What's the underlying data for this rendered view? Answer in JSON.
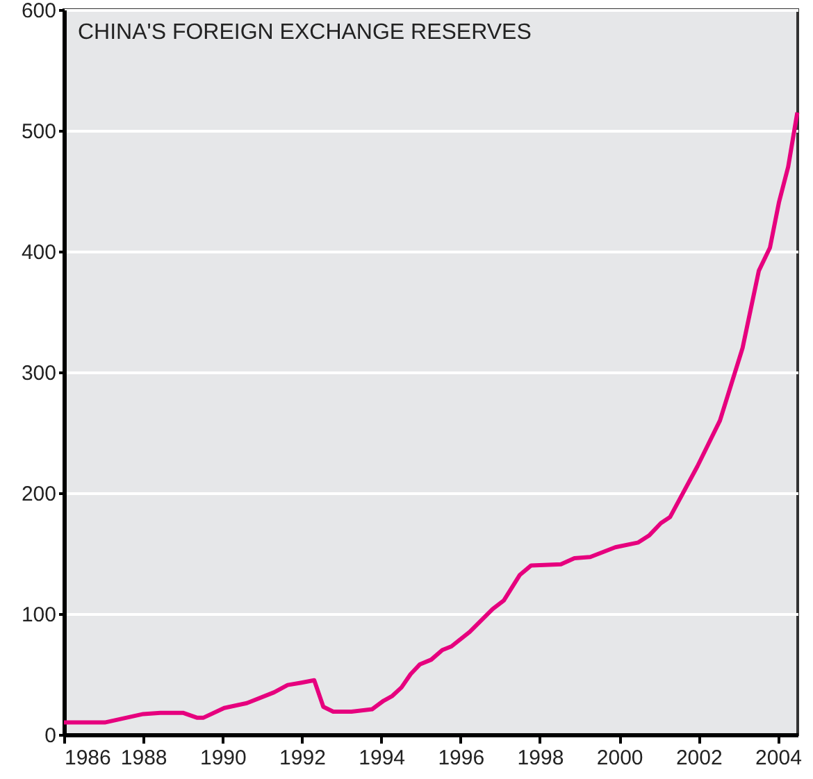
{
  "chart_data": {
    "type": "line",
    "title": "CHINA'S FOREIGN EXCHANGE RESERVES",
    "x": [
      1986.0,
      1987.03,
      1988.0,
      1988.43,
      1989.0,
      1989.35,
      1989.52,
      1990.04,
      1990.61,
      1991.3,
      1991.64,
      1991.99,
      1992.31,
      1992.54,
      1992.79,
      1993.25,
      1993.77,
      1994.06,
      1994.28,
      1994.51,
      1994.74,
      1994.97,
      1995.26,
      1995.54,
      1995.77,
      1996.23,
      1996.81,
      1997.09,
      1997.49,
      1997.78,
      1998.53,
      1998.87,
      1999.27,
      1999.9,
      2000.48,
      2000.76,
      2001.05,
      2001.28,
      2001.97,
      2002.54,
      2003.11,
      2003.52,
      2003.8,
      2004.03,
      2004.26,
      2004.49
    ],
    "series": [
      {
        "color": "#e6007e",
        "values": [
          10,
          10,
          17,
          18,
          18,
          14,
          14,
          22,
          26,
          35,
          41,
          43,
          45,
          23,
          19,
          19,
          21,
          28,
          32,
          39,
          50,
          58,
          62,
          70,
          73,
          85,
          104,
          111,
          132,
          140,
          141,
          146,
          147,
          155,
          159,
          165,
          175,
          180,
          222,
          260,
          320,
          384,
          403,
          441,
          470,
          515
        ]
      }
    ],
    "xlim": [
      1986,
      2004.5
    ],
    "xticks": [
      1986,
      1988,
      1990,
      1992,
      1994,
      1996,
      1998,
      2000,
      2002,
      2004
    ],
    "ylim": [
      0,
      600
    ],
    "yticks": [
      0,
      100,
      200,
      300,
      400,
      500,
      600
    ],
    "grid": "y",
    "marker": "none",
    "line_style": "solid"
  }
}
